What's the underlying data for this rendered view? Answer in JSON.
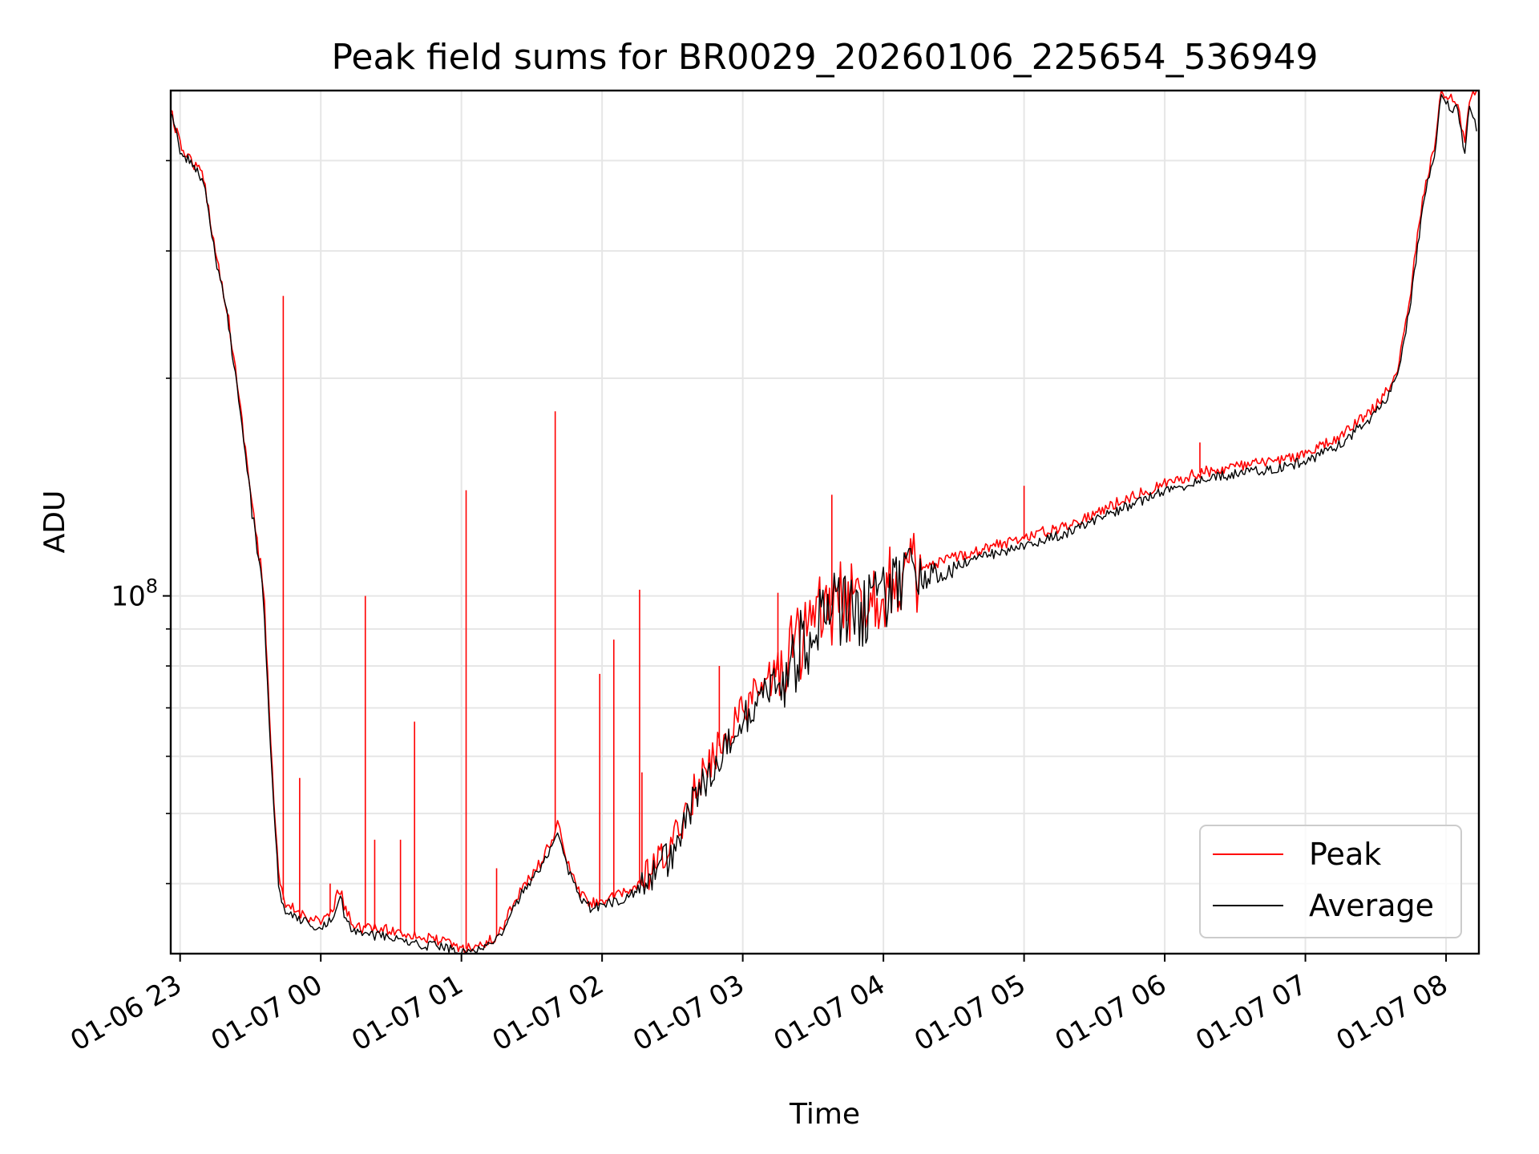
{
  "chart_data": {
    "type": "line",
    "title": "Peak field sums for BR0029_20260106_225654_536949",
    "xlabel": "Time",
    "ylabel": "ADU",
    "y_scale": "log",
    "x_range": [
      "2026-01-06 22:56",
      "2026-01-07 08:14"
    ],
    "ylim": [
      32000000,
      500000000
    ],
    "y_ticks": [
      {
        "value": 100000000,
        "base": "10",
        "exp": "8"
      }
    ],
    "y_minor_ticks": [
      40000000,
      50000000,
      60000000,
      70000000,
      80000000,
      90000000,
      200000000,
      300000000,
      400000000
    ],
    "x_ticks": [
      "01-06 23",
      "01-07 00",
      "01-07 01",
      "01-07 02",
      "01-07 03",
      "01-07 04",
      "01-07 05",
      "01-07 06",
      "01-07 07",
      "01-07 08"
    ],
    "x_tick_times": [
      "2026-01-06 23:00",
      "2026-01-07 00:00",
      "2026-01-07 01:00",
      "2026-01-07 02:00",
      "2026-01-07 03:00",
      "2026-01-07 04:00",
      "2026-01-07 05:00",
      "2026-01-07 06:00",
      "2026-01-07 07:00",
      "2026-01-07 08:00"
    ],
    "grid": true,
    "legend_position": "lower-right",
    "series": [
      {
        "name": "Peak",
        "color": "#ff0000",
        "x": [
          "2026-01-06 22:56",
          "2026-01-06 23:00",
          "2026-01-06 23:10",
          "2026-01-06 23:15",
          "2026-01-06 23:20",
          "2026-01-06 23:25",
          "2026-01-06 23:30",
          "2026-01-06 23:35",
          "2026-01-06 23:36",
          "2026-01-06 23:40",
          "2026-01-06 23:42",
          "2026-01-06 23:44",
          "2026-01-06 23:45",
          "2026-01-06 23:48",
          "2026-01-06 23:50",
          "2026-01-06 23:55",
          "2026-01-07 00:00",
          "2026-01-07 00:05",
          "2026-01-07 00:07",
          "2026-01-07 00:09",
          "2026-01-07 00:10",
          "2026-01-07 00:12",
          "2026-01-07 00:13",
          "2026-01-07 00:15",
          "2026-01-07 00:17",
          "2026-01-07 00:19",
          "2026-01-07 00:20",
          "2026-01-07 00:22",
          "2026-01-07 00:23",
          "2026-01-07 00:30",
          "2026-01-07 00:33",
          "2026-01-07 00:34",
          "2026-01-07 00:35",
          "2026-01-07 00:40",
          "2026-01-07 00:42",
          "2026-01-07 00:43",
          "2026-01-07 00:44",
          "2026-01-07 00:50",
          "2026-01-07 00:58",
          "2026-01-07 01:00",
          "2026-01-07 01:02",
          "2026-01-07 01:03",
          "2026-01-07 01:04",
          "2026-01-07 01:10",
          "2026-01-07 01:15",
          "2026-01-07 01:18",
          "2026-01-07 01:20",
          "2026-01-07 01:25",
          "2026-01-07 01:30",
          "2026-01-07 01:35",
          "2026-01-07 01:40",
          "2026-01-07 01:41",
          "2026-01-07 01:42",
          "2026-01-07 01:45",
          "2026-01-07 01:50",
          "2026-01-07 01:55",
          "2026-01-07 01:59",
          "2026-01-07 02:00",
          "2026-01-07 02:01",
          "2026-01-07 02:05",
          "2026-01-07 02:06",
          "2026-01-07 02:07",
          "2026-01-07 02:10",
          "2026-01-07 02:16",
          "2026-01-07 02:17",
          "2026-01-07 02:18",
          "2026-01-07 02:20",
          "2026-01-07 02:30",
          "2026-01-07 02:37",
          "2026-01-07 02:40",
          "2026-01-07 02:45",
          "2026-01-07 02:50",
          "2026-01-07 03:00",
          "2026-01-07 03:10",
          "2026-01-07 03:14",
          "2026-01-07 03:15",
          "2026-01-07 03:20",
          "2026-01-07 03:30",
          "2026-01-07 03:37",
          "2026-01-07 03:38",
          "2026-01-07 03:39",
          "2026-01-07 03:45",
          "2026-01-07 04:00",
          "2026-01-07 04:15",
          "2026-01-07 04:30",
          "2026-01-07 04:45",
          "2026-01-07 05:00",
          "2026-01-07 05:01",
          "2026-01-07 05:15",
          "2026-01-07 05:30",
          "2026-01-07 05:45",
          "2026-01-07 06:00",
          "2026-01-07 06:15",
          "2026-01-07 06:30",
          "2026-01-07 06:45",
          "2026-01-07 07:00",
          "2026-01-07 07:15",
          "2026-01-07 07:30",
          "2026-01-07 07:35",
          "2026-01-07 07:40",
          "2026-01-07 07:45",
          "2026-01-07 07:50",
          "2026-01-07 07:55",
          "2026-01-07 07:58",
          "2026-01-07 08:00",
          "2026-01-07 08:05",
          "2026-01-07 08:08",
          "2026-01-07 08:10",
          "2026-01-07 08:13"
        ],
        "y": [
          470000000,
          420000000,
          380000000,
          300000000,
          250000000,
          190000000,
          140000000,
          105000000,
          95000000,
          52000000,
          41000000,
          38000000,
          37000000,
          37000000,
          36500000,
          36000000,
          35500000,
          36500000,
          38500000,
          39000000,
          37000000,
          36000000,
          35500000,
          35000000,
          34800000,
          34700000,
          34700000,
          34600000,
          34600000,
          34500000,
          34300000,
          34200000,
          34200000,
          34000000,
          33800000,
          33700000,
          33600000,
          33400000,
          32800000,
          32400000,
          32500000,
          32500000,
          32700000,
          33000000,
          33800000,
          35000000,
          36500000,
          39000000,
          41000000,
          43500000,
          47000000,
          48500000,
          47000000,
          43000000,
          39000000,
          37500000,
          37800000,
          38000000,
          38000000,
          38300000,
          38300000,
          38500000,
          38800000,
          40000000,
          40000000,
          40500000,
          41000000,
          45000000,
          52000000,
          54000000,
          58000000,
          62000000,
          70000000,
          76000000,
          78000000,
          79000000,
          84000000,
          92000000,
          96000000,
          97000000,
          98000000,
          97000000,
          103000000,
          108000000,
          113000000,
          117000000,
          120000000,
          121000000,
          124000000,
          130000000,
          137000000,
          143000000,
          148000000,
          151000000,
          153000000,
          157000000,
          166000000,
          183000000,
          192000000,
          210000000,
          265000000,
          355000000,
          420000000,
          500000000,
          490000000,
          480000000,
          420000000,
          490000000,
          495000000
        ],
        "spikes": [
          {
            "x": "2026-01-06 23:44",
            "y": 260000000
          },
          {
            "x": "2026-01-06 23:51",
            "y": 56000000
          },
          {
            "x": "2026-01-07 00:04",
            "y": 40000000
          },
          {
            "x": "2026-01-07 00:19",
            "y": 100000000
          },
          {
            "x": "2026-01-07 00:23",
            "y": 46000000
          },
          {
            "x": "2026-01-07 00:34",
            "y": 46000000
          },
          {
            "x": "2026-01-07 00:40",
            "y": 67000000
          },
          {
            "x": "2026-01-07 01:02",
            "y": 140000000
          },
          {
            "x": "2026-01-07 01:15",
            "y": 42000000
          },
          {
            "x": "2026-01-07 01:40",
            "y": 180000000
          },
          {
            "x": "2026-01-07 01:59",
            "y": 78000000
          },
          {
            "x": "2026-01-07 02:05",
            "y": 87000000
          },
          {
            "x": "2026-01-07 02:16",
            "y": 102000000
          },
          {
            "x": "2026-01-07 02:17",
            "y": 57000000
          },
          {
            "x": "2026-01-07 02:50",
            "y": 80000000
          },
          {
            "x": "2026-01-07 03:15",
            "y": 101000000
          },
          {
            "x": "2026-01-07 03:38",
            "y": 138000000
          },
          {
            "x": "2026-01-07 05:00",
            "y": 142000000
          },
          {
            "x": "2026-01-07 06:15",
            "y": 163000000
          }
        ]
      },
      {
        "name": "Average",
        "color": "#000000",
        "x": [
          "2026-01-06 22:56",
          "2026-01-06 23:00",
          "2026-01-06 23:10",
          "2026-01-06 23:15",
          "2026-01-06 23:20",
          "2026-01-06 23:25",
          "2026-01-06 23:30",
          "2026-01-06 23:35",
          "2026-01-06 23:36",
          "2026-01-06 23:40",
          "2026-01-06 23:42",
          "2026-01-06 23:44",
          "2026-01-06 23:45",
          "2026-01-06 23:48",
          "2026-01-06 23:50",
          "2026-01-06 23:55",
          "2026-01-07 00:00",
          "2026-01-07 00:05",
          "2026-01-07 00:07",
          "2026-01-07 00:09",
          "2026-01-07 00:10",
          "2026-01-07 00:12",
          "2026-01-07 00:13",
          "2026-01-07 00:15",
          "2026-01-07 00:17",
          "2026-01-07 00:19",
          "2026-01-07 00:20",
          "2026-01-07 00:22",
          "2026-01-07 00:23",
          "2026-01-07 00:30",
          "2026-01-07 00:33",
          "2026-01-07 00:34",
          "2026-01-07 00:35",
          "2026-01-07 00:40",
          "2026-01-07 00:42",
          "2026-01-07 00:43",
          "2026-01-07 00:44",
          "2026-01-07 00:50",
          "2026-01-07 00:58",
          "2026-01-07 01:00",
          "2026-01-07 01:02",
          "2026-01-07 01:03",
          "2026-01-07 01:04",
          "2026-01-07 01:10",
          "2026-01-07 01:15",
          "2026-01-07 01:18",
          "2026-01-07 01:20",
          "2026-01-07 01:25",
          "2026-01-07 01:30",
          "2026-01-07 01:35",
          "2026-01-07 01:40",
          "2026-01-07 01:41",
          "2026-01-07 01:42",
          "2026-01-07 01:45",
          "2026-01-07 01:50",
          "2026-01-07 01:55",
          "2026-01-07 01:59",
          "2026-01-07 02:00",
          "2026-01-07 02:01",
          "2026-01-07 02:05",
          "2026-01-07 02:06",
          "2026-01-07 02:07",
          "2026-01-07 02:10",
          "2026-01-07 02:16",
          "2026-01-07 02:17",
          "2026-01-07 02:18",
          "2026-01-07 02:20",
          "2026-01-07 02:30",
          "2026-01-07 02:37",
          "2026-01-07 02:40",
          "2026-01-07 02:45",
          "2026-01-07 02:50",
          "2026-01-07 03:00",
          "2026-01-07 03:10",
          "2026-01-07 03:14",
          "2026-01-07 03:15",
          "2026-01-07 03:20",
          "2026-01-07 03:30",
          "2026-01-07 03:37",
          "2026-01-07 03:38",
          "2026-01-07 03:39",
          "2026-01-07 03:45",
          "2026-01-07 04:00",
          "2026-01-07 04:15",
          "2026-01-07 04:30",
          "2026-01-07 04:45",
          "2026-01-07 05:00",
          "2026-01-07 05:01",
          "2026-01-07 05:15",
          "2026-01-07 05:30",
          "2026-01-07 05:45",
          "2026-01-07 06:00",
          "2026-01-07 06:15",
          "2026-01-07 06:30",
          "2026-01-07 06:45",
          "2026-01-07 07:00",
          "2026-01-07 07:15",
          "2026-01-07 07:30",
          "2026-01-07 07:35",
          "2026-01-07 07:40",
          "2026-01-07 07:45",
          "2026-01-07 07:50",
          "2026-01-07 07:55",
          "2026-01-07 07:58",
          "2026-01-07 08:00",
          "2026-01-07 08:05",
          "2026-01-07 08:08",
          "2026-01-07 08:10",
          "2026-01-07 08:13"
        ],
        "y": [
          465000000,
          415000000,
          375000000,
          295000000,
          245000000,
          186000000,
          137000000,
          102000000,
          92000000,
          50000000,
          40000000,
          37000000,
          36300000,
          36300000,
          35800000,
          35300000,
          34800000,
          35800000,
          37800000,
          38300000,
          36300000,
          35300000,
          34800000,
          34300000,
          34100000,
          34000000,
          34000000,
          33900000,
          33900000,
          33800000,
          33600000,
          33500000,
          33500000,
          33300000,
          33100000,
          33000000,
          32900000,
          32700000,
          32200000,
          32000000,
          32100000,
          32100000,
          32300000,
          32600000,
          33300000,
          34500000,
          36000000,
          38400000,
          40400000,
          42800000,
          46000000,
          47500000,
          46000000,
          42300000,
          38400000,
          37000000,
          37200000,
          37400000,
          37400000,
          37700000,
          37700000,
          37900000,
          38200000,
          39300000,
          39300000,
          39800000,
          40300000,
          44000000,
          50500000,
          52500000,
          56000000,
          60000000,
          67500000,
          73500000,
          75500000,
          76500000,
          81000000,
          89000000,
          93000000,
          94000000,
          95000000,
          94000000,
          100000000,
          105000000,
          110000000,
          114000000,
          117000000,
          118000000,
          121000000,
          127000000,
          133500000,
          139500000,
          144500000,
          147500000,
          149500000,
          153500000,
          162000000,
          179000000,
          188000000,
          205000000,
          258000000,
          345000000,
          410000000,
          490000000,
          478000000,
          470000000,
          410000000,
          478000000,
          440000000
        ],
        "spikes": []
      }
    ]
  }
}
